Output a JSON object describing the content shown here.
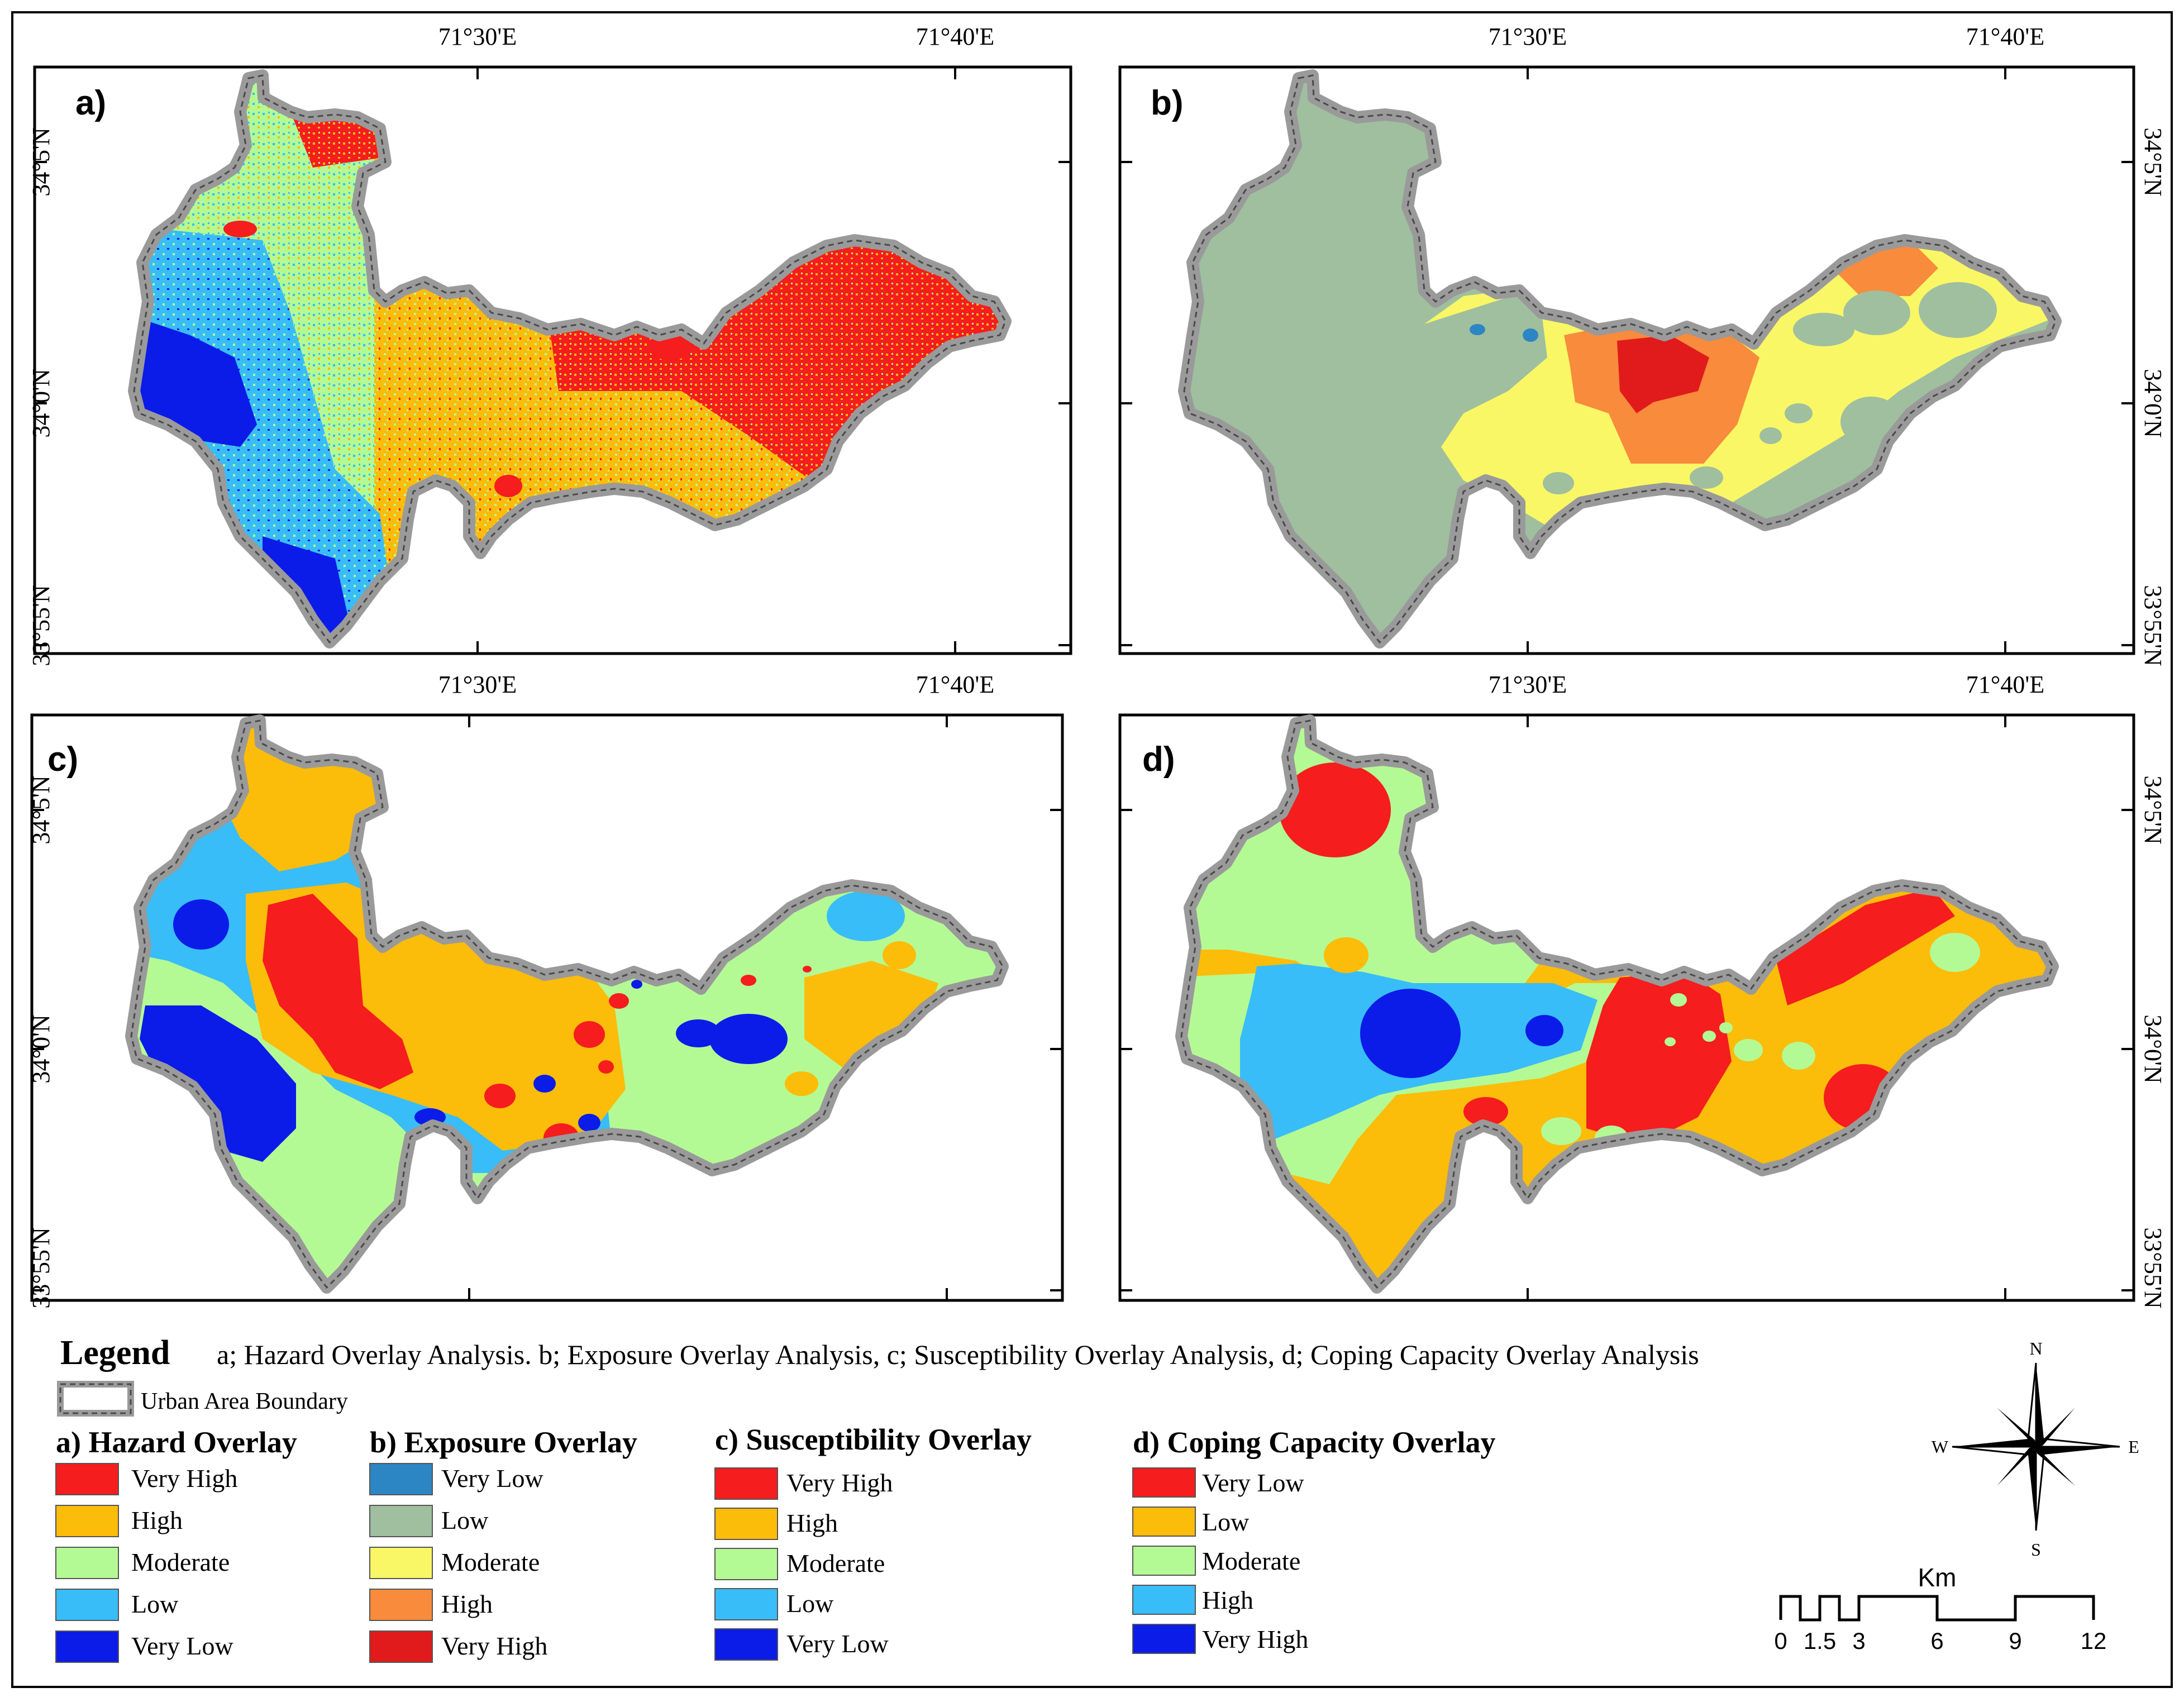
{
  "coords": {
    "lon_30": "71°30'E",
    "lon_40": "71°40'E",
    "lat_5": "34°5'N",
    "lat_0": "34°0'N",
    "lat_55": "33°55'N"
  },
  "panels": {
    "a": "a)",
    "b": "b)",
    "c": "c)",
    "d": "d)"
  },
  "legend": {
    "title": "Legend",
    "caption": "a; Hazard Overlay Analysis. b; Exposure Overlay Analysis, c; Susceptibility Overlay Analysis, d; Coping Capacity Overlay Analysis",
    "boundary": "Urban Area Boundary",
    "groups": [
      {
        "title": "a) Hazard Overlay",
        "items": [
          {
            "label": "Very High",
            "color": "#f51d1d"
          },
          {
            "label": "High",
            "color": "#fcbc0a"
          },
          {
            "label": "Moderate",
            "color": "#b4fa94"
          },
          {
            "label": "Low",
            "color": "#38bdf8"
          },
          {
            "label": "Very Low",
            "color": "#0b1be8"
          }
        ]
      },
      {
        "title": "b) Exposure Overlay",
        "items": [
          {
            "label": "Very Low",
            "color": "#2d86c4"
          },
          {
            "label": "Low",
            "color": "#9fbf9f"
          },
          {
            "label": "Moderate",
            "color": "#f9f765"
          },
          {
            "label": "High",
            "color": "#f88b3c"
          },
          {
            "label": "Very High",
            "color": "#e11b1b"
          }
        ]
      },
      {
        "title": "c) Susceptibility  Overlay",
        "items": [
          {
            "label": "Very High",
            "color": "#f51d1d"
          },
          {
            "label": "High",
            "color": "#fcbc0a"
          },
          {
            "label": "Moderate",
            "color": "#b4fa94"
          },
          {
            "label": "Low",
            "color": "#38bdf8"
          },
          {
            "label": "Very Low",
            "color": "#0b1be8"
          }
        ]
      },
      {
        "title": "d) Coping Capacity Overlay",
        "items": [
          {
            "label": "Very Low",
            "color": "#f51d1d"
          },
          {
            "label": "Low",
            "color": "#fcbc0a"
          },
          {
            "label": "Moderate",
            "color": "#b4fa94"
          },
          {
            "label": "High",
            "color": "#38bdf8"
          },
          {
            "label": "Very High",
            "color": "#0b1be8"
          }
        ]
      }
    ]
  },
  "compass": {
    "n": "N",
    "s": "S",
    "e": "E",
    "w": "W"
  },
  "scale": {
    "unit": "Km",
    "labels": [
      "0",
      "1.5",
      "3",
      "6",
      "9",
      "12"
    ]
  }
}
